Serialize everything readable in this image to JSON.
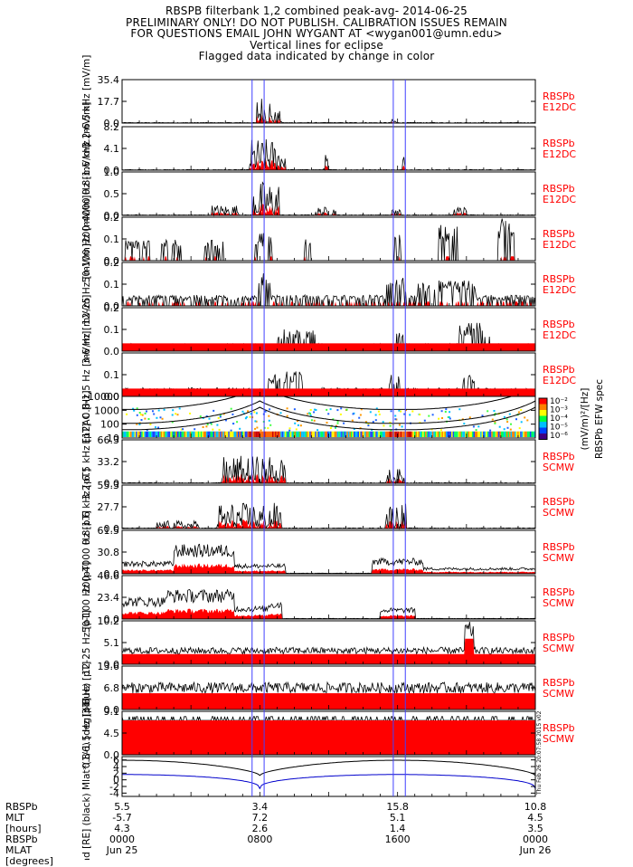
{
  "header": {
    "line1": "RBSPB filterbank 1,2 combined peak-avg- 2014-06-25",
    "line2": "PRELIMINARY ONLY! DO NOT PUBLISH. CALIBRATION ISSUES REMAIN",
    "line3": "FOR QUESTIONS EMAIL JOHN WYGANT AT <wygan001@umn.edu>",
    "line4": "Vertical lines for eclipse",
    "line5": "Flagged data indicated by change in color"
  },
  "colors": {
    "peak": "#000000",
    "avg": "#ff0000",
    "eclipse": "#4040ff",
    "side_label": "#ff0000",
    "orbit_mlt": "#0000cc"
  },
  "eclipse_lines_hours": [
    7.55,
    8.25,
    15.75,
    16.45
  ],
  "time_range_hours": [
    0,
    24
  ],
  "chart_data": {
    "type": "line",
    "panels": [
      {
        "ylabel": "3.2-6.5 kHz [mV/m]",
        "side": [
          "RBSPb",
          "E12DC"
        ],
        "ticks": [
          "35.4",
          "17.7",
          "0.0"
        ],
        "ylim": [
          0,
          35.4
        ],
        "style": "spiky",
        "segments": [
          [
            7.8,
            8.6,
            24
          ],
          [
            8.6,
            9.3,
            10
          ],
          [
            15.6,
            15.9,
            3
          ]
        ]
      },
      {
        "ylabel": "0.8-1.6 kHz [mV/m]",
        "side": [
          "RBSPb",
          "E12DC"
        ],
        "ticks": [
          "8.2",
          "4.1",
          "0.0"
        ],
        "ylim": [
          0,
          8.2
        ],
        "style": "spiky",
        "segments": [
          [
            7.4,
            9.5,
            6
          ],
          [
            11.7,
            11.95,
            3
          ],
          [
            16.3,
            16.5,
            3
          ]
        ]
      },
      {
        "ylabel": "200-4000 Hz [mV/m]",
        "side": [
          "RBSPb",
          "E12DC"
        ],
        "ticks": [
          "1.0",
          "0.5",
          "0.0"
        ],
        "ylim": [
          0,
          1.0
        ],
        "style": "spiky",
        "segments": [
          [
            5.2,
            6.8,
            0.25
          ],
          [
            7.6,
            9.2,
            0.8
          ],
          [
            11.2,
            12.4,
            0.2
          ],
          [
            15.6,
            16.2,
            0.15
          ],
          [
            19.2,
            20.0,
            0.2
          ]
        ]
      },
      {
        "ylabel": "50-100 Hz [mV/m]",
        "side": [
          "RBSPb",
          "E12DC"
        ],
        "ticks": [
          "0.2",
          "0.1",
          "0.0"
        ],
        "ylim": [
          0,
          0.2
        ],
        "style": "blocky",
        "segments": [
          [
            0.2,
            1.6,
            0.1
          ],
          [
            2.3,
            3.4,
            0.1
          ],
          [
            4.7,
            5.9,
            0.1
          ],
          [
            7.7,
            8.7,
            0.13
          ],
          [
            10.6,
            11.0,
            0.1
          ],
          [
            15.8,
            16.2,
            0.12
          ],
          [
            18.3,
            19.5,
            0.17
          ],
          [
            21.8,
            22.8,
            0.2
          ]
        ]
      },
      {
        "ylabel": "12-25 Hz [mV/m]",
        "side": [
          "RBSPb",
          "E12DC"
        ],
        "ticks": [
          "0.2",
          "0.1",
          "0.0"
        ],
        "ylim": [
          0,
          0.2
        ],
        "style": "blocky",
        "segments": [
          [
            0,
            24,
            0.05
          ],
          [
            7.8,
            8.6,
            0.15
          ],
          [
            15.3,
            16.6,
            0.13
          ],
          [
            17.2,
            20.5,
            0.12
          ]
        ]
      },
      {
        "ylabel": "3-6 Hz [mV/m]",
        "side": [
          "RBSPb",
          "E12DC"
        ],
        "ticks": [
          "0.2",
          "0.1",
          "0.0"
        ],
        "ylim": [
          0,
          0.2
        ],
        "style": "blocky-red",
        "segments": [
          [
            0,
            24,
            0.035
          ],
          [
            9.0,
            11.3,
            0.1
          ],
          [
            15.8,
            16.4,
            0.11
          ],
          [
            19.6,
            21.4,
            0.13
          ]
        ]
      },
      {
        "ylabel": "0.8-1.5 Hz [mV/m]",
        "side": [
          "RBSPb",
          "E12DC"
        ],
        "ticks": [
          "0.1",
          "0.0"
        ],
        "ylim": [
          0,
          0.2
        ],
        "style": "blocky-red",
        "segments": [
          [
            0,
            24,
            0.04
          ],
          [
            8.5,
            10.5,
            0.12
          ],
          [
            15.5,
            16.2,
            0.1
          ],
          [
            19.8,
            20.5,
            0.1
          ]
        ]
      },
      {
        "ylabel": "E12AC [Hz]",
        "side": [],
        "ticks": [
          "10000",
          "1000",
          "100",
          "10"
        ],
        "ylim": [
          10,
          10000
        ],
        "style": "spectrogram",
        "segments": []
      },
      {
        "ylabel": "3.2-6.5 kHz [pT]",
        "side": [
          "RBSPb",
          "SCMW"
        ],
        "ticks": [
          "66.3",
          "33.2",
          "0.0"
        ],
        "ylim": [
          0,
          66.3
        ],
        "style": "spiky",
        "segments": [
          [
            5.8,
            9.5,
            42
          ],
          [
            15.3,
            16.4,
            22
          ]
        ]
      },
      {
        "ylabel": "0.8-1.6 kHz [pT]",
        "side": [
          "RBSPb",
          "SCMW"
        ],
        "ticks": [
          "55.3",
          "27.7",
          "0.0"
        ],
        "ylim": [
          0,
          55.3
        ],
        "style": "spiky",
        "segments": [
          [
            2.0,
            4.5,
            10
          ],
          [
            5.5,
            9.3,
            33
          ],
          [
            15.3,
            16.5,
            33
          ]
        ]
      },
      {
        "ylabel": "200-4000 Hz [pT]",
        "side": [
          "RBSPb",
          "SCMW"
        ],
        "ticks": [
          "61.5",
          "30.8",
          "0.0"
        ],
        "ylim": [
          0,
          61.5
        ],
        "style": "smooth",
        "segments": [
          [
            0,
            3.0,
            18
          ],
          [
            3.0,
            6.5,
            42
          ],
          [
            6.5,
            9.5,
            14
          ],
          [
            14.5,
            17.5,
            22
          ],
          [
            17.5,
            24,
            9
          ]
        ]
      },
      {
        "ylabel": "50-100 Hz [pT]",
        "side": [
          "RBSPb",
          "SCMW"
        ],
        "ticks": [
          "46.6",
          "23.4",
          "0.0"
        ],
        "ylim": [
          0,
          46.6
        ],
        "style": "smooth",
        "segments": [
          [
            0,
            2.5,
            24
          ],
          [
            2.5,
            6.5,
            32
          ],
          [
            6.5,
            8.5,
            14
          ],
          [
            8.5,
            9.3,
            20
          ],
          [
            15.0,
            17.0,
            12
          ]
        ]
      },
      {
        "ylabel": "12-25 Hz [pT]",
        "side": [
          "RBSPb",
          "SCMW"
        ],
        "ticks": [
          "10.2",
          "5.1",
          "0.0"
        ],
        "ylim": [
          0,
          10.2
        ],
        "style": "noise",
        "segments": [
          [
            0,
            24,
            4.0
          ],
          [
            19.9,
            20.4,
            10.0
          ]
        ]
      },
      {
        "ylabel": "3-6 Hz [pT]",
        "side": [
          "RBSPb",
          "SCMW"
        ],
        "ticks": [
          "13.6",
          "6.8",
          "0.0"
        ],
        "ylim": [
          0,
          13.6
        ],
        "style": "noise",
        "segments": [
          [
            0,
            24,
            8.5
          ]
        ]
      },
      {
        "ylabel": "0.8-1.5 Hz [pT]",
        "side": [
          "RBSPb",
          "SCMW"
        ],
        "ticks": [
          "9.1",
          "4.5",
          "0.0"
        ],
        "ylim": [
          0,
          9.1
        ],
        "style": "noise-flat",
        "segments": [
          [
            0,
            24,
            7.2
          ]
        ]
      },
      {
        "ylabel": "Rad [RE] (black) Mlat*(1/6) [deg] (blue)",
        "side": [],
        "ticks": [
          "6",
          "4",
          "2",
          "0",
          "-2",
          "-4"
        ],
        "ylim": [
          -5,
          7
        ],
        "style": "orbit",
        "segments": []
      }
    ],
    "colorbar": {
      "ticks": [
        "10⁻²",
        "10⁻³",
        "10⁻⁴",
        "10⁻⁵",
        "10⁻⁶"
      ],
      "label1": "(mV/m)²/[Hz]",
      "label2": "RBSPb EFW spec"
    },
    "side_stamp": "Thu Feb 26 20:07:58 2015 v02",
    "footer": {
      "row_labels": [
        "RBSPb",
        "MLT",
        "[hours]",
        "RBSPb",
        "MLAT",
        "[degrees]"
      ],
      "columns": [
        {
          "hour": 0,
          "rad": "5.5",
          "mlt": "-5.7",
          "mlat": "4.3",
          "time": "0000",
          "date": "Jun 25"
        },
        {
          "hour": 8,
          "rad": "3.4",
          "mlt": "7.2",
          "mlat": "2.6",
          "time": "0800",
          "date": ""
        },
        {
          "hour": 16,
          "rad": "15.8",
          "mlt": "5.1",
          "mlat": "1.4",
          "time": "1600",
          "date": ""
        },
        {
          "hour": 24,
          "rad": "10.8",
          "mlt": "4.5",
          "mlat": "3.5",
          "time": "0000",
          "date": "Jun 26"
        }
      ]
    }
  }
}
